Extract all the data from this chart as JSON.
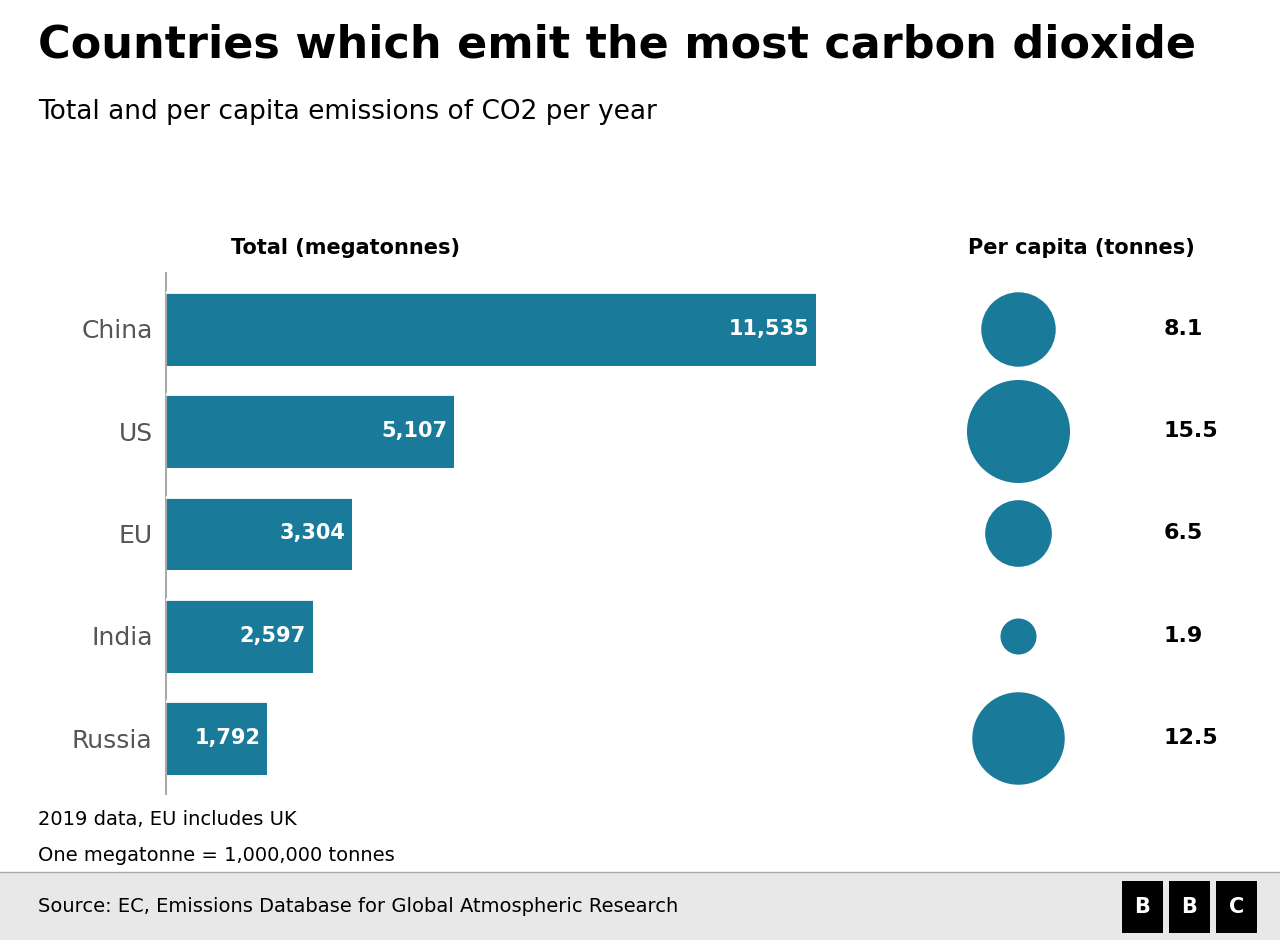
{
  "title": "Countries which emit the most carbon dioxide",
  "subtitle": "Total and per capita emissions of CO2 per year",
  "bar_label": "Total (megatonnes)",
  "bubble_label": "Per capita (tonnes)",
  "countries": [
    "China",
    "US",
    "EU",
    "India",
    "Russia"
  ],
  "total": [
    11535,
    5107,
    3304,
    2597,
    1792
  ],
  "total_labels": [
    "11,535",
    "5,107",
    "3,304",
    "2,597",
    "1,792"
  ],
  "per_capita": [
    8.1,
    15.5,
    6.5,
    1.9,
    12.5
  ],
  "per_capita_labels": [
    "8.1",
    "15.5",
    "6.5",
    "1.9",
    "12.5"
  ],
  "bar_color": "#1a7a9a",
  "bubble_color": "#1a7a9a",
  "bg_color": "#ffffff",
  "text_color": "#000000",
  "country_label_color": "#555555",
  "bar_text_color": "#ffffff",
  "footnote1": "2019 data, EU includes UK",
  "footnote2": "One megatonne = 1,000,000 tonnes",
  "source": "Source: EC, Emissions Database for Global Atmospheric Research",
  "title_fontsize": 32,
  "subtitle_fontsize": 19,
  "axis_label_fontsize": 15,
  "country_fontsize": 18,
  "bar_value_fontsize": 15,
  "bubble_value_fontsize": 16,
  "footnote_fontsize": 14,
  "source_fontsize": 14,
  "max_total": 12500,
  "source_bar_color": "#e8e8e8",
  "separator_color": "#aaaaaa",
  "spine_color": "#aaaaaa"
}
